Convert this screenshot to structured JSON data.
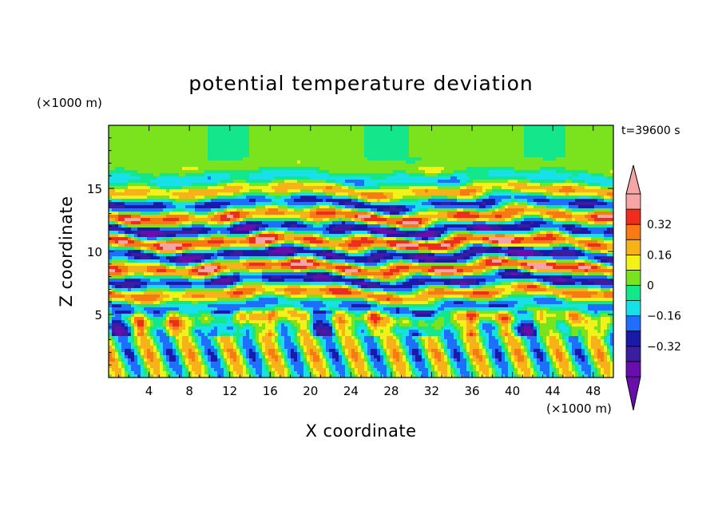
{
  "chart_data": {
    "type": "heatmap",
    "title": "potential temperature deviation",
    "xlabel": "X coordinate",
    "ylabel": "Z coordinate",
    "x_unit": "(×1000 m)",
    "y_unit": "(×1000 m)",
    "time_label": "t=39600 s",
    "xlim": [
      0,
      50
    ],
    "ylim": [
      0,
      20
    ],
    "x_ticks": [
      4,
      8,
      12,
      16,
      20,
      24,
      28,
      32,
      36,
      40,
      44,
      48
    ],
    "x_tick_labels": [
      "4",
      "8",
      "12",
      "16",
      "20",
      "24",
      "28",
      "32",
      "36",
      "40",
      "44",
      "48"
    ],
    "y_ticks": [
      5,
      10,
      15
    ],
    "y_tick_labels": [
      "5",
      "10",
      "15"
    ],
    "colorbar": {
      "levels": [
        -0.48,
        -0.4,
        -0.32,
        -0.24,
        -0.16,
        -0.08,
        0,
        0.08,
        0.16,
        0.24,
        0.32,
        0.4,
        0.48
      ],
      "labeled_levels": [
        -0.32,
        -0.16,
        0,
        0.16,
        0.32
      ],
      "labels": [
        "−0.32",
        "−0.16",
        "0",
        "0.16",
        "0.32"
      ],
      "colors": [
        "#6a0dad",
        "#3b1ea0",
        "#1a1aa8",
        "#1f6fff",
        "#18e0e8",
        "#14e68c",
        "#7be21e",
        "#f2f21a",
        "#f7b21a",
        "#f77a12",
        "#ee2d1c",
        "#f5a5a5"
      ],
      "below_color": "#6a0dad",
      "above_color": "#f5a5a5"
    },
    "field_description_note_removed": null
  }
}
